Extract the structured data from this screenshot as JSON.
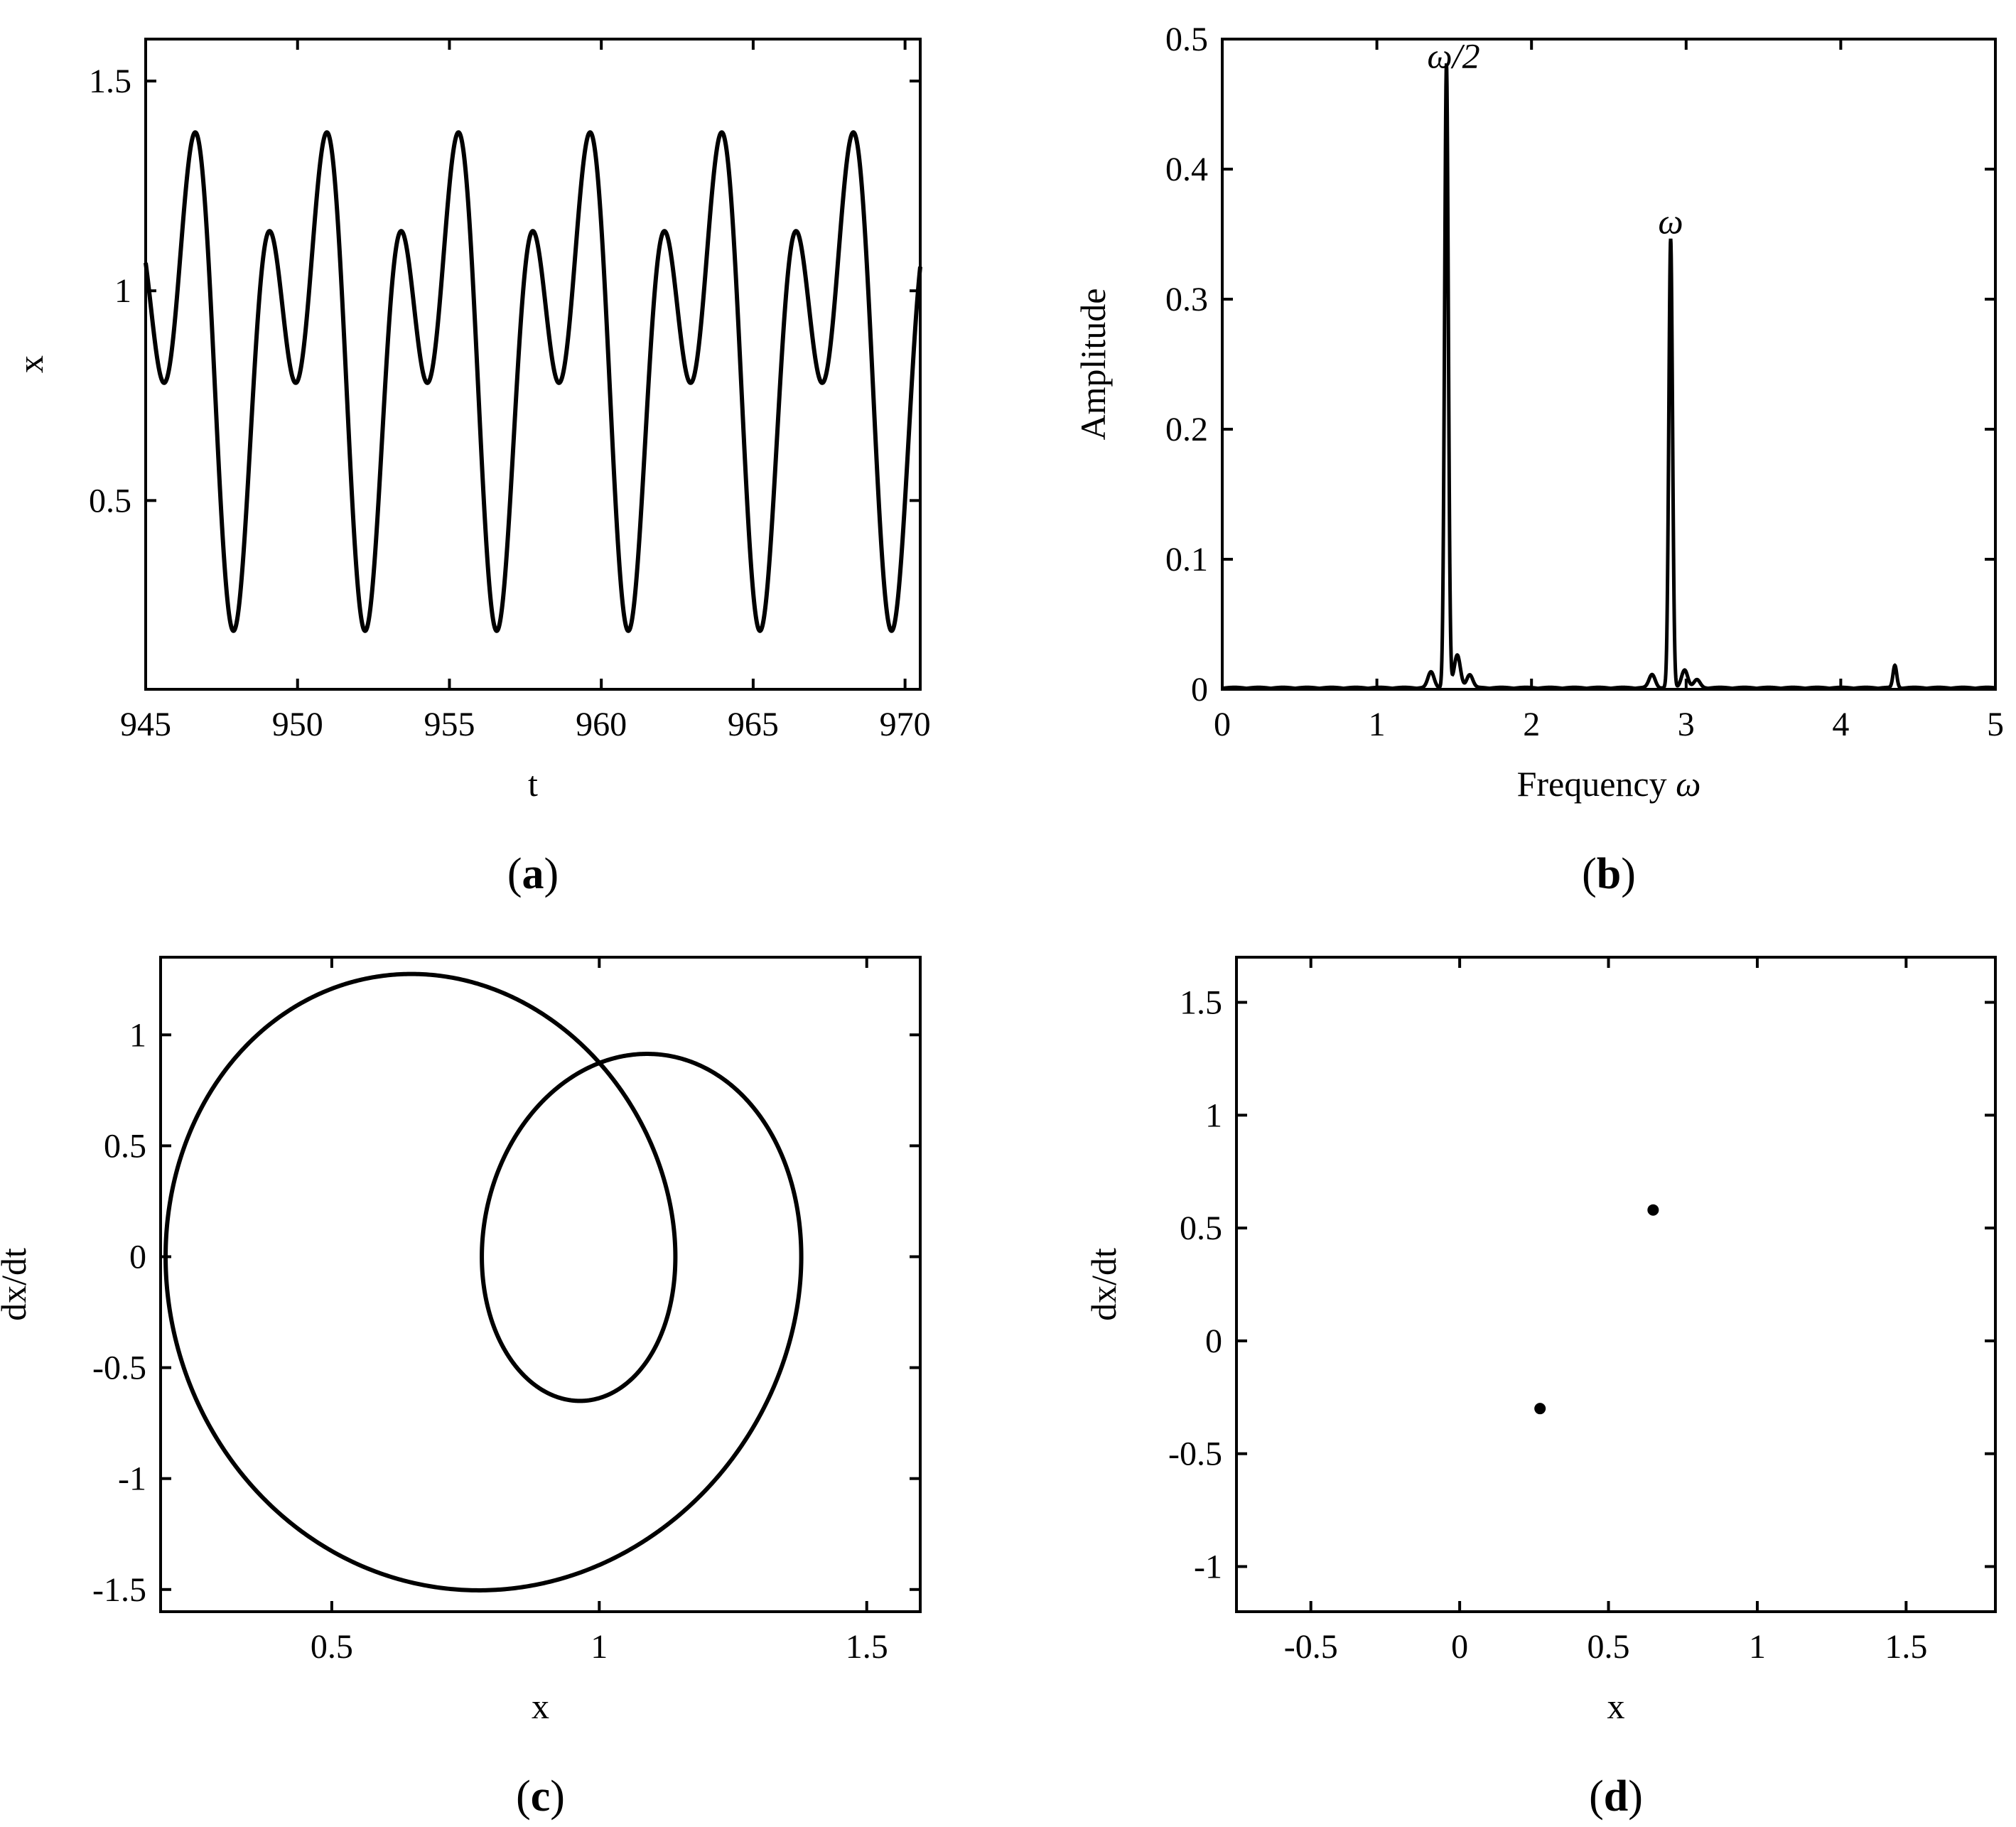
{
  "chart_data": [
    {
      "id": "a",
      "type": "line",
      "panel_label": "(a)",
      "panel_letter": "a",
      "xlabel": "t",
      "ylabel": "x",
      "xlim": [
        945,
        970.5
      ],
      "ylim": [
        0.05,
        1.6
      ],
      "xticks": [
        "945",
        "950",
        "955",
        "960",
        "965",
        "970"
      ],
      "yticks": [
        "0.5",
        "1",
        "1.5"
      ],
      "series": [
        {
          "model": "x(t) = 0.86 + 0.32 sin(w t / 2 + p1) + 0.37 sin(w t + p2)",
          "omega": 2.9,
          "x_range": [
            945,
            970.5
          ],
          "x_max": 1.465,
          "x_min": 0.255,
          "t_at_max": 945.7
        }
      ]
    },
    {
      "id": "b",
      "type": "line",
      "panel_label": "(b)",
      "panel_letter": "b",
      "xlabel": "Frequency ",
      "xlabel_symbol": "ω",
      "ylabel": "Amplitude",
      "xlim": [
        0,
        5
      ],
      "ylim": [
        0,
        0.5
      ],
      "xticks": [
        "0",
        "1",
        "2",
        "3",
        "4",
        "5"
      ],
      "yticks": [
        "0",
        "0.1",
        "0.2",
        "0.3",
        "0.4",
        "0.5"
      ],
      "peaks": [
        {
          "x": 1.45,
          "y": 0.48,
          "label": "ω/2"
        },
        {
          "x": 2.9,
          "y": 0.345,
          "label": "ω"
        },
        {
          "x": 4.35,
          "y": 0.017
        }
      ],
      "sidelobes": [
        {
          "x": 1.35,
          "y": 0.012
        },
        {
          "x": 1.52,
          "y": 0.025
        },
        {
          "x": 1.6,
          "y": 0.01
        },
        {
          "x": 2.78,
          "y": 0.01
        },
        {
          "x": 2.99,
          "y": 0.014
        },
        {
          "x": 3.07,
          "y": 0.006
        }
      ]
    },
    {
      "id": "c",
      "type": "line",
      "panel_label": "(c)",
      "panel_letter": "c",
      "xlabel": "x",
      "ylabel": "dx/dt",
      "xlim": [
        0.18,
        1.6
      ],
      "ylim": [
        -1.6,
        1.35
      ],
      "xticks": [
        "0.5",
        "1",
        "1.5"
      ],
      "yticks": [
        "-1.5",
        "-1",
        "-0.5",
        "0",
        "0.5",
        "1"
      ],
      "series": [
        {
          "model": "phase portrait of panel (a) signal over one period",
          "x_range": [
            0.255,
            1.465
          ],
          "dxdt_range": [
            -1.47,
            1.19
          ]
        }
      ]
    },
    {
      "id": "d",
      "type": "scatter",
      "panel_label": "(d)",
      "panel_letter": "d",
      "xlabel": "x",
      "ylabel": "dx/dt",
      "xlim": [
        -0.75,
        1.8
      ],
      "ylim": [
        -1.2,
        1.7
      ],
      "xticks": [
        "-0.5",
        "0",
        "0.5",
        "1",
        "1.5"
      ],
      "yticks": [
        "-1",
        "-0.5",
        "0",
        "0.5",
        "1",
        "1.5"
      ],
      "points": [
        {
          "x": 0.65,
          "y": 0.58
        },
        {
          "x": 0.27,
          "y": -0.3
        }
      ]
    }
  ]
}
